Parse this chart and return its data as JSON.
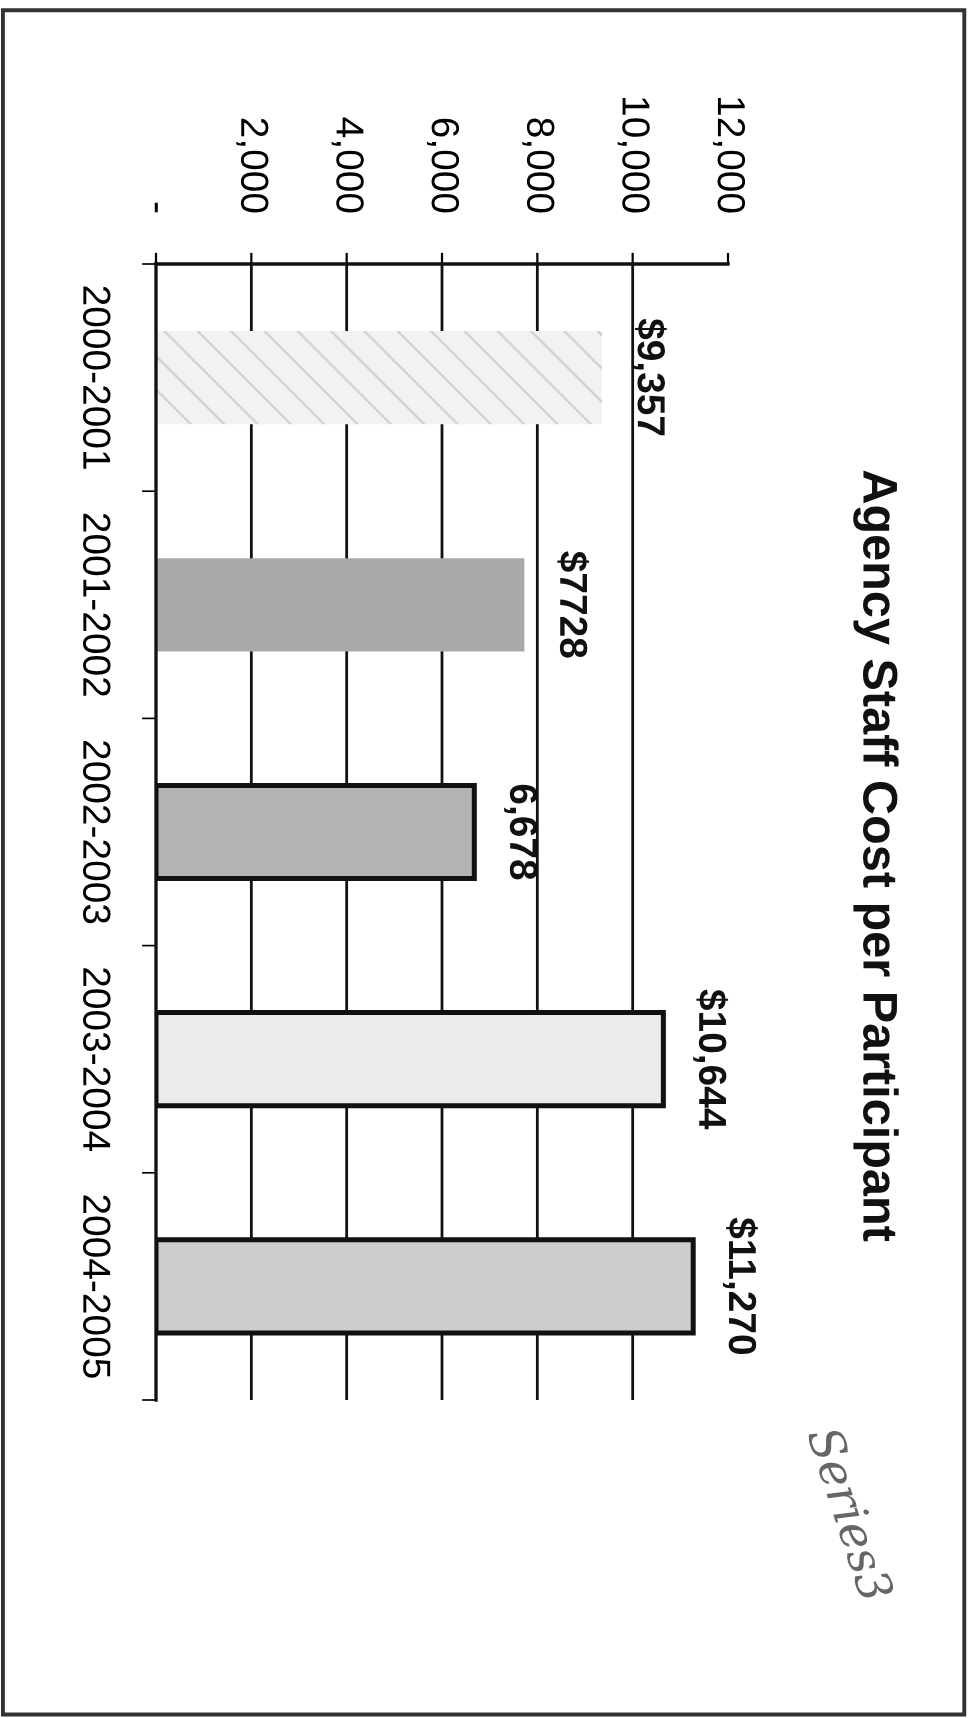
{
  "chart_data": {
    "type": "bar",
    "orientation": "horizontal",
    "title": "Agency Staff Cost per Participant",
    "categories": [
      "2000-2001",
      "2001-2002",
      "2002-2003",
      "2003-2004",
      "2004-2005"
    ],
    "values": [
      9357,
      7728,
      6678,
      10644,
      11270
    ],
    "colors": [
      "#f2f2f2",
      "#a9a9a9",
      "#b3b3b3",
      "#ebebeb",
      "#cdcdcd"
    ],
    "value_labels": [
      "$9,357",
      "$7728",
      "6,678",
      "$10,644",
      "$11,270"
    ],
    "xlim": [
      0,
      12000
    ],
    "xticks": [
      {
        "value": 0,
        "label": "-"
      },
      {
        "value": 2000,
        "label": "2,000"
      },
      {
        "value": 4000,
        "label": "4,000"
      },
      {
        "value": 6000,
        "label": "6,000"
      },
      {
        "value": 8000,
        "label": "8,000"
      },
      {
        "value": 10000,
        "label": "10,000"
      },
      {
        "value": 12000,
        "label": "12,000"
      }
    ],
    "grid": "x",
    "annotations": [
      "Series3"
    ]
  }
}
